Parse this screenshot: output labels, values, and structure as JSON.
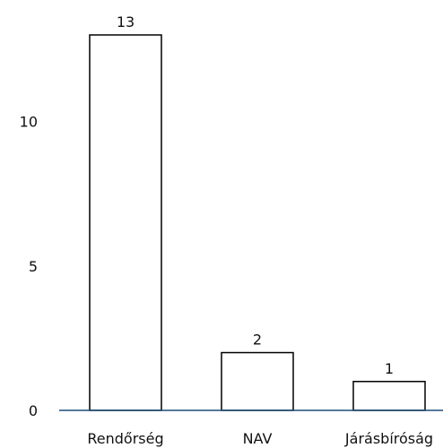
{
  "chart_data": {
    "type": "bar",
    "categories": [
      "Rendőrség",
      "NAV",
      "Járásbíróság"
    ],
    "values": [
      13,
      2,
      1
    ],
    "data_labels": [
      "13",
      "2",
      "1"
    ],
    "yticks": [
      0,
      5,
      10
    ],
    "ytick_labels": [
      "0",
      "5",
      "10"
    ],
    "ylim": [
      0,
      13
    ],
    "grid": false,
    "legend": "none",
    "colors": {
      "bar_fill": "#ffffff",
      "bar_stroke": "#000000",
      "axis": "#1f4e79",
      "text": "#111111"
    }
  }
}
